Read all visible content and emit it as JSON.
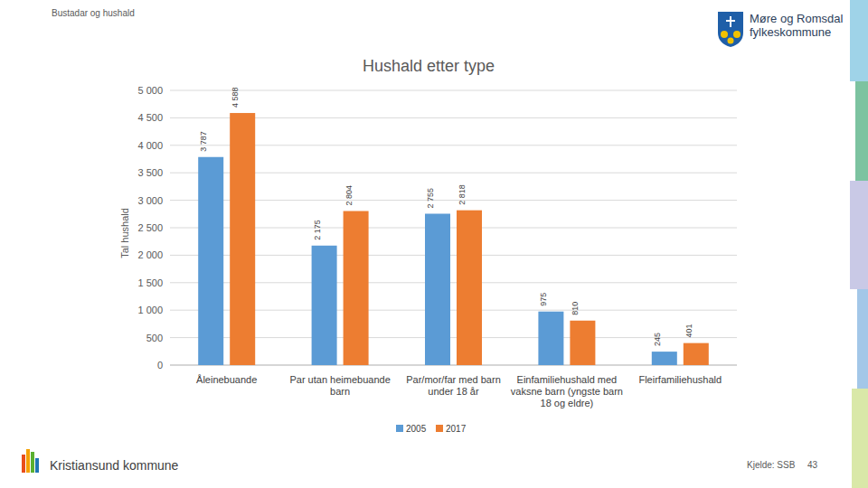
{
  "page": {
    "header": "Bustadar og hushald",
    "logo": [
      "Møre og Romsdal",
      "fylkeskommune"
    ],
    "footer": "Kristiansund kommune",
    "source": "Kjelde: SSB",
    "page_number": 43
  },
  "chart_data": {
    "type": "bar",
    "title": "Hushald etter type",
    "y_label": "Tal hushald",
    "categories": [
      "Åleinebuande",
      "Par utan heimebuande barn",
      "Par/mor/far med barn under 18 år",
      "Einfamiliehushald med vaksne barn (yngste barn 18 og eldre)",
      "Fleirfamiliehushald"
    ],
    "series": [
      {
        "name": "2005",
        "color": "#5b9bd5",
        "values": [
          3787,
          2175,
          2755,
          975,
          245
        ],
        "value_labels": [
          "3 787",
          "2 175",
          "2 755",
          "975",
          "245"
        ]
      },
      {
        "name": "2017",
        "color": "#ed7d31",
        "values": [
          4588,
          2804,
          2818,
          810,
          401
        ],
        "value_labels": [
          "4 588",
          "2 804",
          "2 818",
          "810",
          "401"
        ]
      }
    ],
    "ylim": [
      0,
      5000
    ],
    "yticks": [
      0,
      500,
      {
        "value": 1000,
        "label": "1 000"
      },
      {
        "value": 1500,
        "label": "1 500"
      },
      {
        "value": 2000,
        "label": "2 000"
      },
      {
        "value": 2500,
        "label": "2 500"
      },
      {
        "value": 3000,
        "label": "3 000"
      },
      {
        "value": 3500,
        "label": "3 500"
      },
      {
        "value": 4000,
        "label": "4 000"
      },
      {
        "value": 4500,
        "label": "4 500"
      },
      {
        "value": 5000,
        "label": "5 000"
      }
    ],
    "grid": true,
    "legend": "bottom",
    "data_labels": true
  }
}
